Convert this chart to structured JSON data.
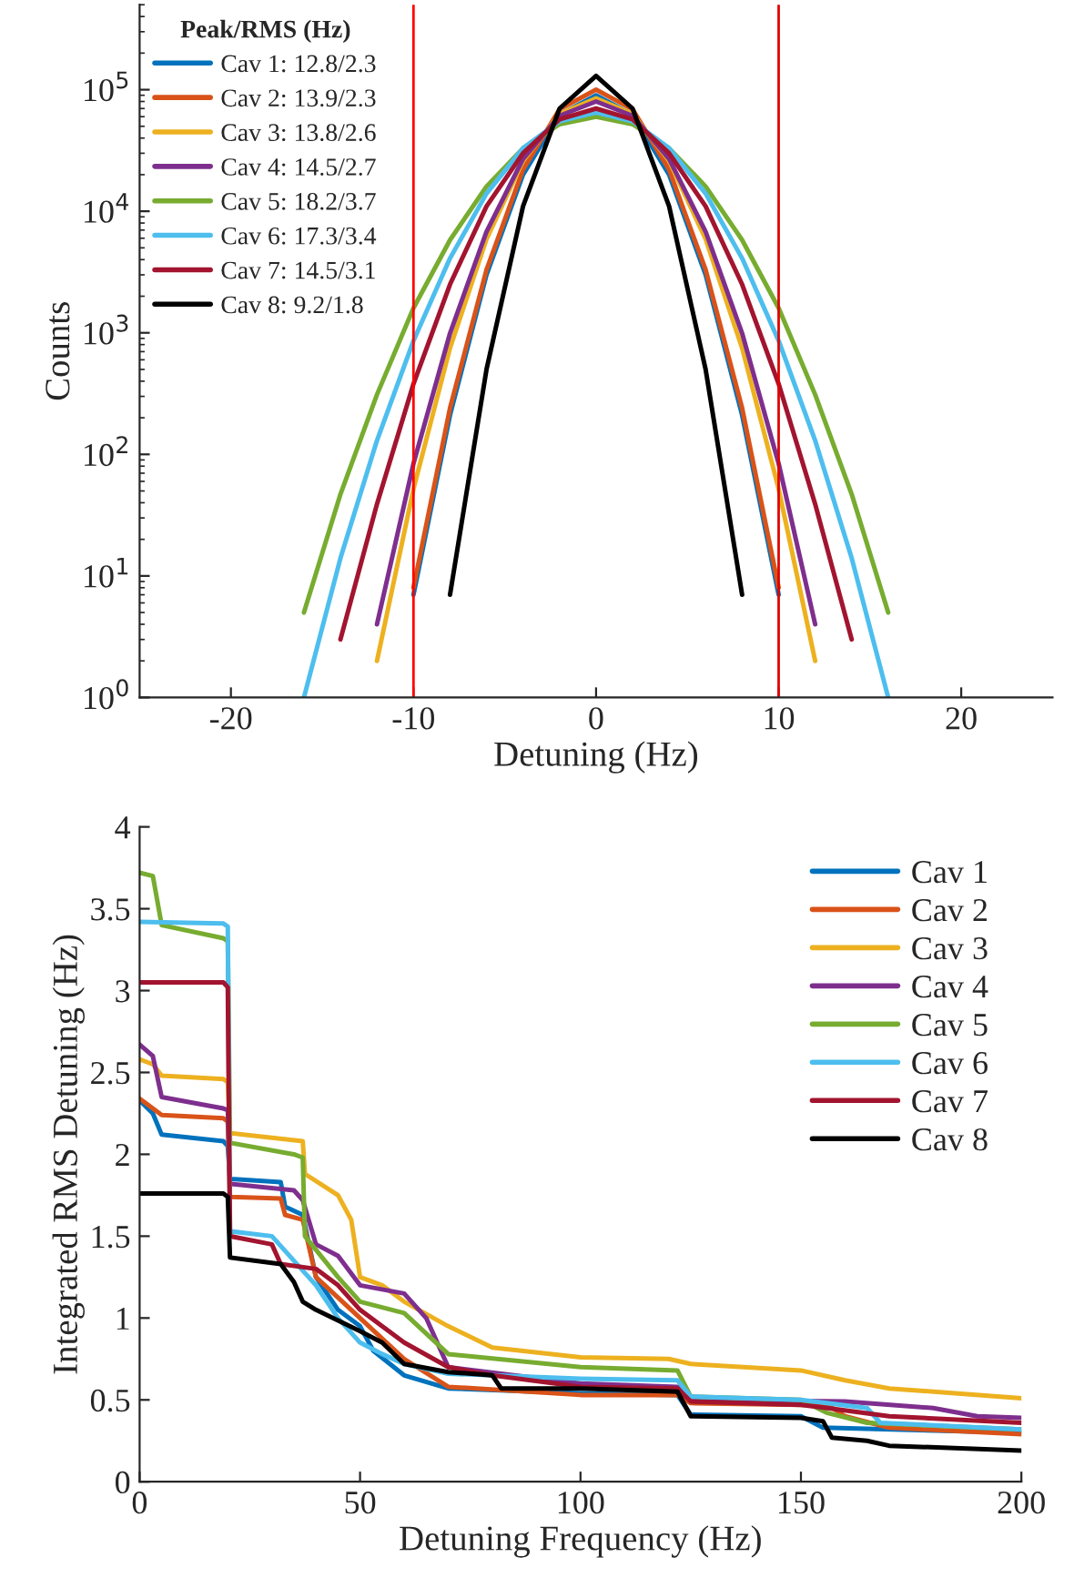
{
  "chart_data": [
    {
      "type": "line",
      "xlabel": "Detuning (Hz)",
      "ylabel": "Counts",
      "legend_title": "Peak/RMS (Hz)",
      "log": "y",
      "legend": "top left",
      "grid": false,
      "xlim": [
        -25,
        25
      ],
      "xticks": [
        -20,
        -10,
        0,
        10,
        20
      ],
      "ylim": [
        1,
        500000
      ],
      "yticks": [
        {
          "value": 1,
          "label": "10$^{0}$"
        },
        {
          "value": 10,
          "label": "10$^{1}$"
        },
        {
          "value": 100,
          "label": "10$^{2}$"
        },
        {
          "value": 1000,
          "label": "10$^{3}$"
        },
        {
          "value": 10000,
          "label": "10$^{4}$"
        },
        {
          "value": 100000,
          "label": "10$^{5}$"
        }
      ],
      "ref_lines": [
        {
          "axis": "x",
          "value": -10,
          "label": null,
          "color": "#ff0000"
        },
        {
          "axis": "x",
          "value": 10,
          "label": null,
          "color": "#e00000"
        }
      ],
      "x": [
        -16,
        -14,
        -12,
        -10,
        -8,
        -6,
        -4,
        -2,
        0,
        2,
        4,
        6,
        8,
        10,
        12,
        14,
        16
      ],
      "series": [
        {
          "name": "Cav 1: 12.8/2.3",
          "color": "#0072bd",
          "values": [
            null,
            null,
            null,
            7,
            210,
            3000,
            20000,
            62000,
            90000,
            62000,
            20000,
            3000,
            210,
            7,
            null,
            null,
            null
          ]
        },
        {
          "name": "Cav 2: 13.9/2.3",
          "color": "#d95319",
          "values": [
            null,
            null,
            null,
            8,
            240,
            3300,
            22000,
            69000,
            100000,
            69000,
            22000,
            3300,
            240,
            8,
            null,
            null,
            null
          ]
        },
        {
          "name": "Cav 3: 13.8/2.6",
          "color": "#edb120",
          "values": [
            null,
            null,
            2,
            52,
            750,
            5900,
            26000,
            63000,
            85000,
            63000,
            26000,
            5900,
            750,
            52,
            2,
            null,
            null
          ]
        },
        {
          "name": "Cav 4: 14.5/2.7",
          "color": "#7e2f8e",
          "values": [
            null,
            null,
            4,
            84,
            990,
            6800,
            27000,
            61000,
            80000,
            61000,
            27000,
            6800,
            990,
            84,
            4,
            null,
            null
          ]
        },
        {
          "name": "Cav 5: 18.2/3.7",
          "color": "#77ac30",
          "values": [
            5,
            47,
            310,
            1600,
            5800,
            16000,
            33000,
            52000,
            60000,
            52000,
            33000,
            16000,
            5800,
            1600,
            310,
            47,
            5
          ]
        },
        {
          "name": "Cav 6: 17.3/3.4",
          "color": "#4dbeee",
          "values": [
            1,
            14,
            130,
            860,
            4100,
            14000,
            33000,
            55000,
            65000,
            55000,
            33000,
            14000,
            4100,
            860,
            130,
            14,
            1
          ]
        },
        {
          "name": "Cav 7: 14.5/3.1",
          "color": "#a2142f",
          "values": [
            null,
            3,
            39,
            380,
            2500,
            11000,
            30000,
            57000,
            70000,
            57000,
            30000,
            11000,
            2500,
            380,
            39,
            3,
            null
          ]
        },
        {
          "name": "Cav 8: 9.2/1.8",
          "color": "#000000",
          "values": [
            null,
            null,
            null,
            null,
            7,
            500,
            11000,
            70000,
            130000,
            70000,
            11000,
            500,
            7,
            null,
            null,
            null,
            null
          ]
        }
      ]
    },
    {
      "type": "line",
      "xlabel": "Detuning Frequency (Hz)",
      "ylabel": "Integrated RMS Detuning (Hz)",
      "legend": "top right",
      "grid": false,
      "xlim": [
        0,
        200
      ],
      "xticks": [
        0,
        50,
        100,
        150,
        200
      ],
      "ylim": [
        0,
        4
      ],
      "yticks": [
        0,
        0.5,
        1,
        1.5,
        2,
        2.5,
        3,
        3.5,
        4
      ],
      "series": [
        {
          "name": "Cav 1",
          "color": "#0072bd",
          "x": [
            0,
            3,
            5,
            19,
            20,
            20.5,
            32,
            33,
            37,
            40,
            45,
            50,
            53,
            60,
            70,
            100,
            122,
            125,
            150,
            155,
            200
          ],
          "values": [
            2.33,
            2.25,
            2.12,
            2.08,
            2.05,
            1.85,
            1.83,
            1.68,
            1.63,
            1.25,
            1.05,
            0.95,
            0.8,
            0.65,
            0.57,
            0.54,
            0.53,
            0.41,
            0.4,
            0.33,
            0.3
          ]
        },
        {
          "name": "Cav 2",
          "color": "#d95319",
          "x": [
            0,
            3,
            5,
            19,
            20,
            20.5,
            32,
            33,
            37,
            40,
            50,
            60,
            70,
            100,
            122,
            125,
            150,
            156,
            160,
            170,
            200
          ],
          "values": [
            2.34,
            2.28,
            2.24,
            2.22,
            2.2,
            1.74,
            1.73,
            1.63,
            1.6,
            1.25,
            1.0,
            0.75,
            0.58,
            0.53,
            0.53,
            0.48,
            0.47,
            0.47,
            0.4,
            0.33,
            0.29
          ]
        },
        {
          "name": "Cav 3",
          "color": "#edb120",
          "x": [
            0,
            3,
            5,
            19,
            20,
            20.5,
            37,
            37.5,
            45,
            48,
            50,
            55,
            60,
            70,
            80,
            100,
            120,
            125,
            150,
            160,
            170,
            200
          ],
          "values": [
            2.58,
            2.55,
            2.48,
            2.46,
            2.44,
            2.13,
            2.08,
            1.88,
            1.75,
            1.6,
            1.25,
            1.2,
            1.1,
            0.95,
            0.82,
            0.76,
            0.75,
            0.72,
            0.68,
            0.62,
            0.57,
            0.51
          ]
        },
        {
          "name": "Cav 4",
          "color": "#7e2f8e",
          "x": [
            0,
            3,
            5,
            19,
            20,
            20.5,
            35,
            37,
            40,
            45,
            50,
            60,
            65,
            70,
            100,
            122,
            125,
            160,
            180,
            190,
            200
          ],
          "values": [
            2.67,
            2.6,
            2.35,
            2.28,
            2.27,
            1.82,
            1.78,
            1.72,
            1.45,
            1.38,
            1.2,
            1.15,
            1.0,
            0.7,
            0.6,
            0.58,
            0.5,
            0.49,
            0.45,
            0.4,
            0.39
          ]
        },
        {
          "name": "Cav 5",
          "color": "#77ac30",
          "x": [
            0,
            3,
            5,
            19,
            20,
            20.5,
            35,
            37,
            37.5,
            45,
            50,
            60,
            70,
            100,
            122,
            125,
            150,
            156,
            165,
            200
          ],
          "values": [
            3.72,
            3.7,
            3.4,
            3.32,
            3.3,
            2.07,
            2.0,
            1.98,
            1.5,
            1.25,
            1.1,
            1.03,
            0.78,
            0.7,
            0.68,
            0.52,
            0.5,
            0.42,
            0.36,
            0.32
          ]
        },
        {
          "name": "Cav 6",
          "color": "#4dbeee",
          "x": [
            0,
            19,
            20,
            20.5,
            30,
            40,
            45,
            50,
            55,
            60,
            70,
            100,
            122,
            125,
            150,
            165,
            168,
            200
          ],
          "values": [
            3.42,
            3.41,
            3.39,
            1.53,
            1.5,
            1.2,
            1.0,
            0.85,
            0.78,
            0.72,
            0.66,
            0.63,
            0.62,
            0.52,
            0.5,
            0.45,
            0.36,
            0.32
          ]
        },
        {
          "name": "Cav 7",
          "color": "#a2142f",
          "x": [
            0,
            19,
            20,
            20.5,
            30,
            32,
            40,
            45,
            50,
            60,
            70,
            80,
            100,
            122,
            125,
            150,
            156,
            170,
            200
          ],
          "values": [
            3.05,
            3.05,
            3.02,
            1.5,
            1.45,
            1.33,
            1.3,
            1.2,
            1.05,
            0.85,
            0.7,
            0.65,
            0.58,
            0.57,
            0.49,
            0.47,
            0.45,
            0.4,
            0.36
          ]
        },
        {
          "name": "Cav 8",
          "color": "#000000",
          "x": [
            0,
            19,
            20,
            20.5,
            32,
            35,
            37,
            40,
            50,
            55,
            60,
            70,
            80,
            82,
            100,
            122,
            125,
            150,
            155,
            157,
            165,
            170,
            200
          ],
          "values": [
            1.76,
            1.76,
            1.74,
            1.37,
            1.33,
            1.22,
            1.1,
            1.05,
            0.92,
            0.85,
            0.72,
            0.67,
            0.65,
            0.57,
            0.57,
            0.55,
            0.4,
            0.39,
            0.37,
            0.27,
            0.25,
            0.22,
            0.19
          ]
        }
      ]
    }
  ]
}
